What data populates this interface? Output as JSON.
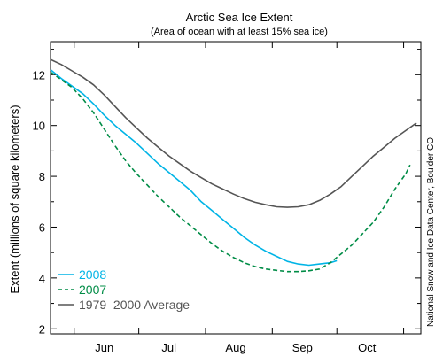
{
  "chart_data": {
    "type": "line",
    "title": "Arctic Sea Ice Extent",
    "subtitle": "(Area of ocean with at least 15% sea ice)",
    "ylabel": "Extent (millions of square kilometers)",
    "xlabel": "",
    "credit": "National Snow and Ice Data Center, Boulder CO",
    "x_unit": "day of year",
    "xlim": [
      141,
      313
    ],
    "ylim": [
      1.8,
      13.3
    ],
    "yticks": [
      2,
      4,
      6,
      8,
      10,
      12
    ],
    "xticks": [
      {
        "label": "Jun",
        "pos": 166
      },
      {
        "label": "Jul",
        "pos": 196
      },
      {
        "label": "Aug",
        "pos": 227
      },
      {
        "label": "Sep",
        "pos": 258
      },
      {
        "label": "Oct",
        "pos": 288
      }
    ],
    "legend_position": "bottom-left",
    "series": [
      {
        "name": "2008",
        "color": "#00b4e6",
        "dash": "solid",
        "points": [
          [
            141,
            12.2
          ],
          [
            146,
            11.85
          ],
          [
            151,
            11.55
          ],
          [
            156,
            11.25
          ],
          [
            161,
            10.85
          ],
          [
            166,
            10.4
          ],
          [
            171,
            10.0
          ],
          [
            176,
            9.65
          ],
          [
            181,
            9.3
          ],
          [
            186,
            8.9
          ],
          [
            191,
            8.5
          ],
          [
            196,
            8.15
          ],
          [
            201,
            7.8
          ],
          [
            206,
            7.45
          ],
          [
            211,
            7.0
          ],
          [
            216,
            6.65
          ],
          [
            221,
            6.3
          ],
          [
            226,
            5.95
          ],
          [
            231,
            5.6
          ],
          [
            236,
            5.3
          ],
          [
            241,
            5.05
          ],
          [
            246,
            4.85
          ],
          [
            251,
            4.65
          ],
          [
            256,
            4.55
          ],
          [
            261,
            4.5
          ],
          [
            266,
            4.55
          ],
          [
            271,
            4.6
          ],
          [
            274,
            4.68
          ]
        ]
      },
      {
        "name": "2007",
        "color": "#008c46",
        "dash": "dashed",
        "points": [
          [
            141,
            12.1
          ],
          [
            146,
            11.8
          ],
          [
            151,
            11.5
          ],
          [
            156,
            11.05
          ],
          [
            161,
            10.5
          ],
          [
            166,
            9.85
          ],
          [
            171,
            9.2
          ],
          [
            176,
            8.6
          ],
          [
            181,
            8.1
          ],
          [
            186,
            7.65
          ],
          [
            191,
            7.2
          ],
          [
            196,
            6.8
          ],
          [
            201,
            6.4
          ],
          [
            206,
            6.05
          ],
          [
            211,
            5.7
          ],
          [
            216,
            5.35
          ],
          [
            221,
            5.05
          ],
          [
            226,
            4.8
          ],
          [
            231,
            4.6
          ],
          [
            236,
            4.45
          ],
          [
            241,
            4.35
          ],
          [
            246,
            4.3
          ],
          [
            251,
            4.25
          ],
          [
            256,
            4.25
          ],
          [
            261,
            4.28
          ],
          [
            266,
            4.35
          ],
          [
            271,
            4.6
          ],
          [
            276,
            4.95
          ],
          [
            281,
            5.3
          ],
          [
            286,
            5.75
          ],
          [
            291,
            6.2
          ],
          [
            296,
            6.8
          ],
          [
            301,
            7.5
          ],
          [
            306,
            8.1
          ],
          [
            308,
            8.45
          ]
        ]
      },
      {
        "name": "1979–2000 Average",
        "color": "#555555",
        "dash": "solid",
        "points": [
          [
            141,
            12.6
          ],
          [
            146,
            12.4
          ],
          [
            151,
            12.15
          ],
          [
            156,
            11.9
          ],
          [
            161,
            11.6
          ],
          [
            166,
            11.2
          ],
          [
            171,
            10.75
          ],
          [
            176,
            10.3
          ],
          [
            181,
            9.9
          ],
          [
            186,
            9.5
          ],
          [
            191,
            9.15
          ],
          [
            196,
            8.8
          ],
          [
            201,
            8.5
          ],
          [
            206,
            8.2
          ],
          [
            211,
            7.95
          ],
          [
            216,
            7.7
          ],
          [
            221,
            7.5
          ],
          [
            226,
            7.3
          ],
          [
            231,
            7.12
          ],
          [
            236,
            6.98
          ],
          [
            241,
            6.88
          ],
          [
            246,
            6.8
          ],
          [
            251,
            6.78
          ],
          [
            256,
            6.8
          ],
          [
            261,
            6.88
          ],
          [
            266,
            7.05
          ],
          [
            271,
            7.3
          ],
          [
            276,
            7.6
          ],
          [
            281,
            8.0
          ],
          [
            286,
            8.4
          ],
          [
            291,
            8.8
          ],
          [
            296,
            9.15
          ],
          [
            301,
            9.5
          ],
          [
            306,
            9.8
          ],
          [
            311,
            10.1
          ]
        ]
      }
    ]
  }
}
